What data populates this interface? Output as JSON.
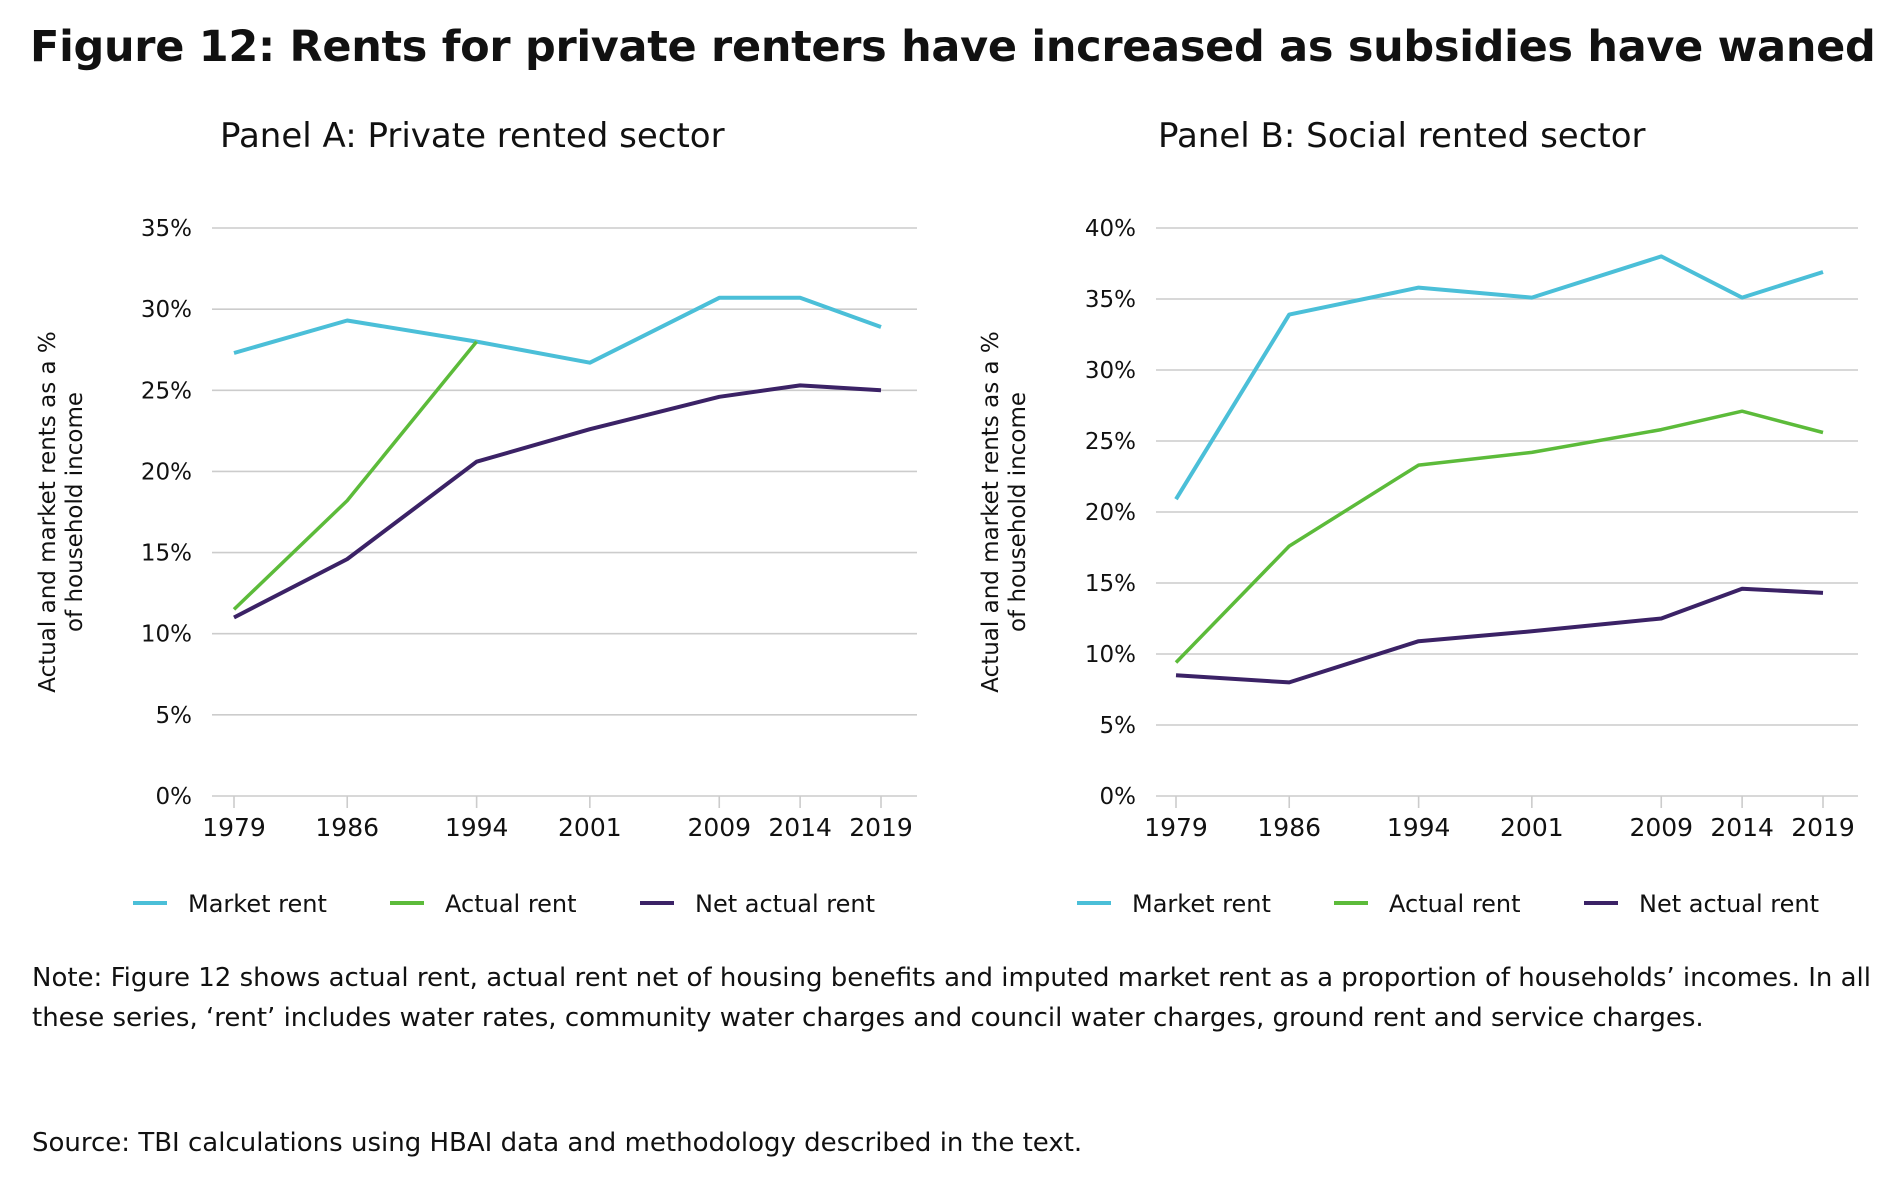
{
  "title": "Figure 12: Rents for private renters have increased as subsidies have waned",
  "note": "Note: Figure 12 shows actual rent, actual rent net of housing benefits and imputed market rent as a proportion of households’ incomes. In all these series, ‘rent’ includes water rates, community water charges and council water charges, ground rent and service charges.",
  "source": "Source: TBI calculations using HBAI data and methodology described in the text.",
  "colors": {
    "market": "#4bbfd8",
    "actual": "#5cbb3a",
    "net": "#3b2266",
    "grid": "#cccccc"
  },
  "chart_data": [
    {
      "type": "line",
      "title": "Panel A: Private rented sector",
      "ylabel": "Actual and market rents as a % of household income",
      "ylim": [
        0,
        35
      ],
      "yticks": [
        "0%",
        "5%",
        "10%",
        "15%",
        "20%",
        "25%",
        "30%",
        "35%"
      ],
      "x": [
        1979,
        1986,
        1994,
        2001,
        2009,
        2014,
        2019
      ],
      "grid": true,
      "legend": "bottom",
      "series": [
        {
          "name": "Market rent",
          "values": [
            27.3,
            29.3,
            28.0,
            26.7,
            30.7,
            30.7,
            28.9
          ]
        },
        {
          "name": "Actual rent",
          "values": [
            11.5,
            18.2,
            28.0,
            null,
            null,
            null,
            null
          ]
        },
        {
          "name": "Net actual rent",
          "values": [
            11.0,
            14.6,
            20.6,
            22.6,
            24.6,
            25.3,
            25.0
          ]
        }
      ]
    },
    {
      "type": "line",
      "title": "Panel B: Social rented sector",
      "ylabel": "Actual and market rents as a % of household income",
      "ylim": [
        0,
        40
      ],
      "yticks": [
        "0%",
        "5%",
        "10%",
        "15%",
        "20%",
        "25%",
        "30%",
        "35%",
        "40%"
      ],
      "x": [
        1979,
        1986,
        1994,
        2001,
        2009,
        2014,
        2019
      ],
      "grid": true,
      "legend": "bottom",
      "series": [
        {
          "name": "Market rent",
          "values": [
            20.9,
            33.9,
            35.8,
            35.1,
            38.0,
            35.1,
            36.9
          ]
        },
        {
          "name": "Actual rent",
          "values": [
            9.4,
            17.6,
            23.3,
            24.2,
            25.8,
            27.1,
            25.6
          ]
        },
        {
          "name": "Net actual rent",
          "values": [
            8.5,
            8.0,
            10.9,
            11.6,
            12.5,
            14.6,
            14.3
          ]
        }
      ]
    }
  ]
}
